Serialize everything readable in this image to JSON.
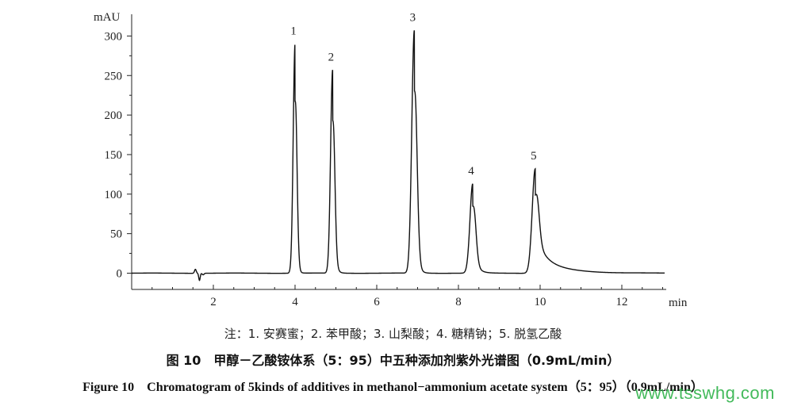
{
  "chart_data": {
    "type": "line",
    "xlabel": "min",
    "ylabel": "mAU",
    "xlim": [
      0,
      13.2
    ],
    "ylim": [
      -20,
      330
    ],
    "xticks": [
      2,
      4,
      6,
      8,
      10,
      12
    ],
    "yticks": [
      0,
      50,
      100,
      150,
      200,
      250,
      300
    ],
    "xtick_labels": [
      "2",
      "4",
      "6",
      "8",
      "10",
      "12"
    ],
    "ytick_labels": [
      "0",
      "50",
      "100",
      "150",
      "200",
      "250",
      "300"
    ],
    "grid": false,
    "legend": "none",
    "line_color": "#111111",
    "peaks": [
      {
        "label": "1",
        "rt": 4.0,
        "height": 290
      },
      {
        "label": "2",
        "rt": 4.92,
        "height": 257
      },
      {
        "label": "3",
        "rt": 6.92,
        "height": 307
      },
      {
        "label": "4",
        "rt": 8.35,
        "height": 113
      },
      {
        "label": "5",
        "rt": 9.88,
        "height": 132
      }
    ]
  },
  "caption": {
    "note": "注：1. 安赛蜜；2. 苯甲酸；3. 山梨酸；4. 糖精钠；5. 脱氢乙酸",
    "title_cn": "图 10　甲醇－乙酸铵体系（5：95）中五种添加剂紫外光谱图（0.9mL/min）",
    "title_en": "Figure 10　Chromatogram of 5kinds of additives in methanol−ammonium acetate system（5：95）（0.9mL/min）"
  },
  "watermark": "www.tsswhg.com"
}
